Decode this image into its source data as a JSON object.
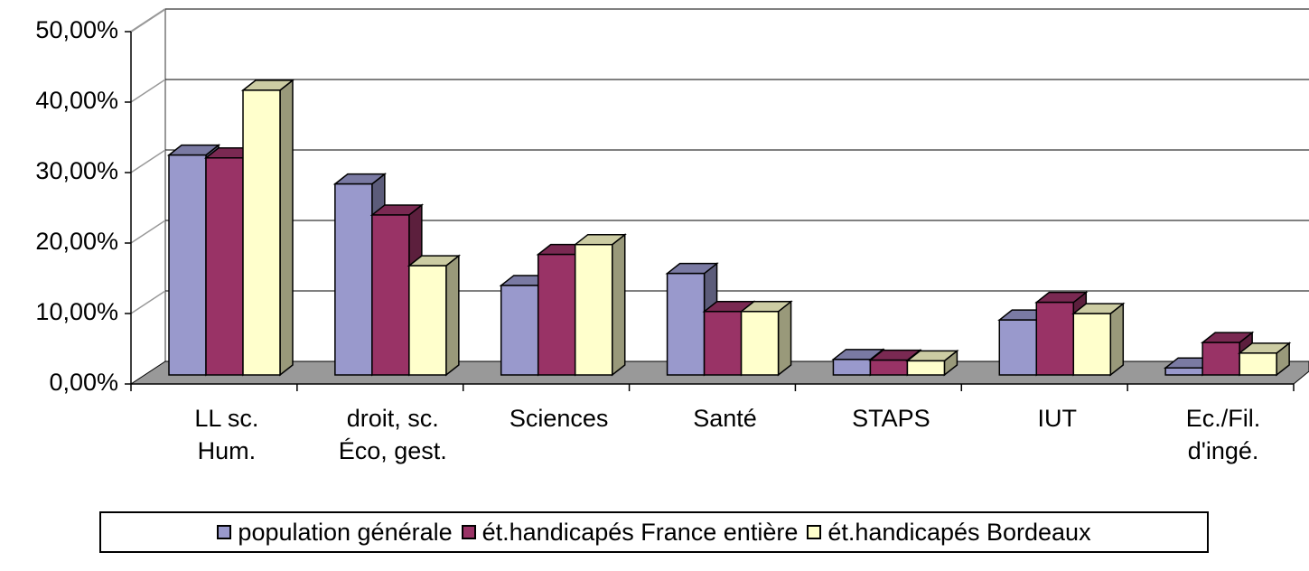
{
  "chart_data": {
    "type": "bar3d",
    "categories": [
      "LL sc. Hum.",
      "droit, sc. Éco, gest.",
      "Sciences",
      "Santé",
      "STAPS",
      "IUT",
      "Ec./Fil. d'ingé."
    ],
    "series": [
      {
        "name": "population générale",
        "color": "#9999cc",
        "values": [
          31.2,
          27.1,
          12.7,
          14.4,
          2.2,
          7.8,
          1.0
        ]
      },
      {
        "name": "ét.handicapés France entière",
        "color": "#993366",
        "values": [
          30.8,
          22.7,
          17.1,
          9.0,
          2.1,
          10.3,
          4.6
        ]
      },
      {
        "name": "ét.handicapés Bordeaux",
        "color": "#ffffcc",
        "values": [
          40.4,
          15.5,
          18.5,
          9.0,
          2.0,
          8.7,
          3.1
        ]
      }
    ],
    "ylim": [
      0,
      50
    ],
    "yticks": [
      {
        "value": 0,
        "label": "0,00%"
      },
      {
        "value": 10,
        "label": "10,00%"
      },
      {
        "value": 20,
        "label": "20,00%"
      },
      {
        "value": 30,
        "label": "30,00%"
      },
      {
        "value": 40,
        "label": "40,00%"
      },
      {
        "value": 50,
        "label": "50,00%"
      }
    ],
    "grid": true
  }
}
